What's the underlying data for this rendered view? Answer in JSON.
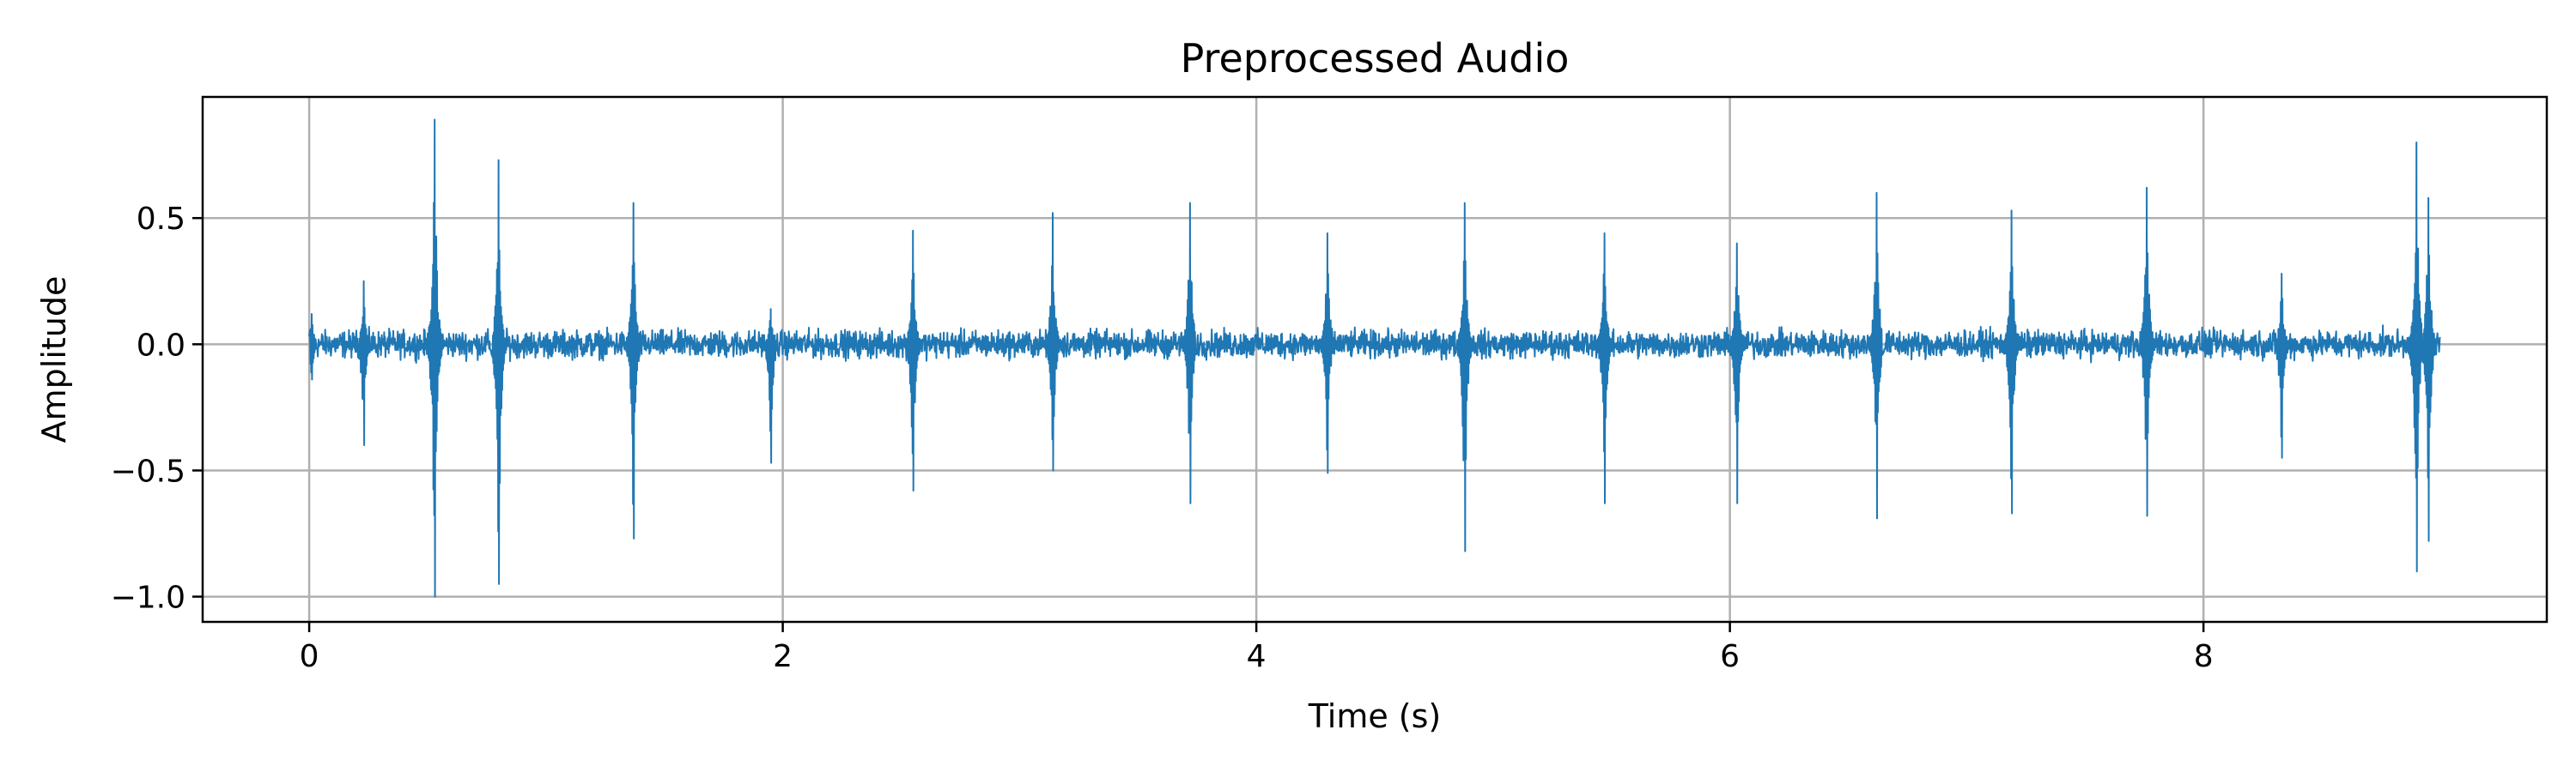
{
  "chart_data": {
    "type": "line",
    "title": "Preprocessed Audio",
    "xlabel": "Time (s)",
    "ylabel": "Amplitude",
    "xlim": [
      -0.45,
      9.45
    ],
    "ylim": [
      -1.1,
      0.98
    ],
    "x_ticks": [
      0,
      2,
      4,
      6,
      8
    ],
    "x_tick_labels": [
      "0",
      "2",
      "4",
      "6",
      "8"
    ],
    "y_ticks": [
      -1.0,
      -0.5,
      0.0,
      0.5
    ],
    "y_tick_labels": [
      "−1.0",
      "−0.5",
      "0.0",
      "0.5"
    ],
    "grid": true,
    "line_color": "#1f77b4",
    "duration_s": 9.0,
    "noise_amplitude": 0.045,
    "peaks": [
      {
        "x": 0.01,
        "max": 0.12,
        "min": -0.14
      },
      {
        "x": 0.23,
        "max": 0.25,
        "min": -0.4
      },
      {
        "x": 0.53,
        "max": 0.89,
        "min": -1.0
      },
      {
        "x": 0.8,
        "max": 0.73,
        "min": -0.95
      },
      {
        "x": 1.37,
        "max": 0.56,
        "min": -0.77
      },
      {
        "x": 1.95,
        "max": 0.14,
        "min": -0.47
      },
      {
        "x": 2.55,
        "max": 0.45,
        "min": -0.58
      },
      {
        "x": 3.14,
        "max": 0.52,
        "min": -0.5
      },
      {
        "x": 3.72,
        "max": 0.56,
        "min": -0.63
      },
      {
        "x": 4.3,
        "max": 0.44,
        "min": -0.51
      },
      {
        "x": 4.88,
        "max": 0.56,
        "min": -0.82
      },
      {
        "x": 5.47,
        "max": 0.44,
        "min": -0.63
      },
      {
        "x": 6.03,
        "max": 0.4,
        "min": -0.63
      },
      {
        "x": 6.62,
        "max": 0.6,
        "min": -0.69
      },
      {
        "x": 7.19,
        "max": 0.53,
        "min": -0.67
      },
      {
        "x": 7.76,
        "max": 0.62,
        "min": -0.68
      },
      {
        "x": 8.33,
        "max": 0.28,
        "min": -0.45
      },
      {
        "x": 8.9,
        "max": 0.8,
        "min": -0.9
      },
      {
        "x": 8.95,
        "max": 0.58,
        "min": -0.78
      }
    ]
  }
}
